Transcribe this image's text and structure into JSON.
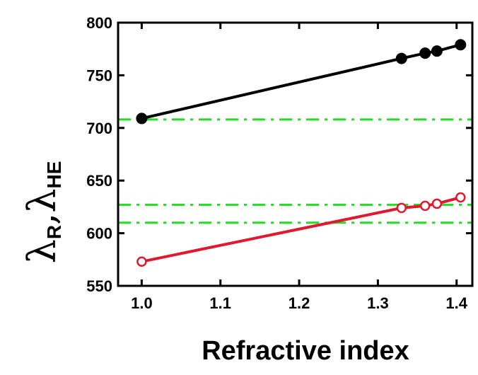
{
  "chart_data": {
    "type": "line",
    "title": "",
    "xlabel": "Refractive index",
    "ylabel": "λR,λHE",
    "ylabel_parts": {
      "symbol1": "λ",
      "sub1": "R",
      "comma": ",",
      "symbol2": "λ",
      "sub2": "HE"
    },
    "xlim": [
      0.97,
      1.42
    ],
    "ylim": [
      550,
      800
    ],
    "xticks": [
      1.0,
      1.1,
      1.2,
      1.3,
      1.4
    ],
    "xtick_labels": [
      "1.0",
      "1.1",
      "1.2",
      "1.3",
      "1.4"
    ],
    "yticks": [
      550,
      600,
      650,
      700,
      750,
      800
    ],
    "ytick_labels": [
      "550",
      "600",
      "650",
      "700",
      "750",
      "800"
    ],
    "grid": false,
    "legend": "none",
    "series": [
      {
        "x": [
          1.0,
          1.33,
          1.36,
          1.375,
          1.405
        ],
        "y": [
          709,
          766,
          771,
          773,
          779
        ],
        "color": "#000000",
        "marker": "filled-circle"
      },
      {
        "x": [
          1.0,
          1.33,
          1.36,
          1.375,
          1.405
        ],
        "y": [
          573,
          624,
          626,
          628,
          634
        ],
        "color": "#e0192f",
        "marker": "open-circle"
      }
    ],
    "reference_lines": [
      {
        "y": 708,
        "color": "#22dd22",
        "style": "dash-dot"
      },
      {
        "y": 627,
        "color": "#22dd22",
        "style": "dash-dot"
      },
      {
        "y": 610,
        "color": "#22dd22",
        "style": "dash-dot"
      }
    ]
  }
}
